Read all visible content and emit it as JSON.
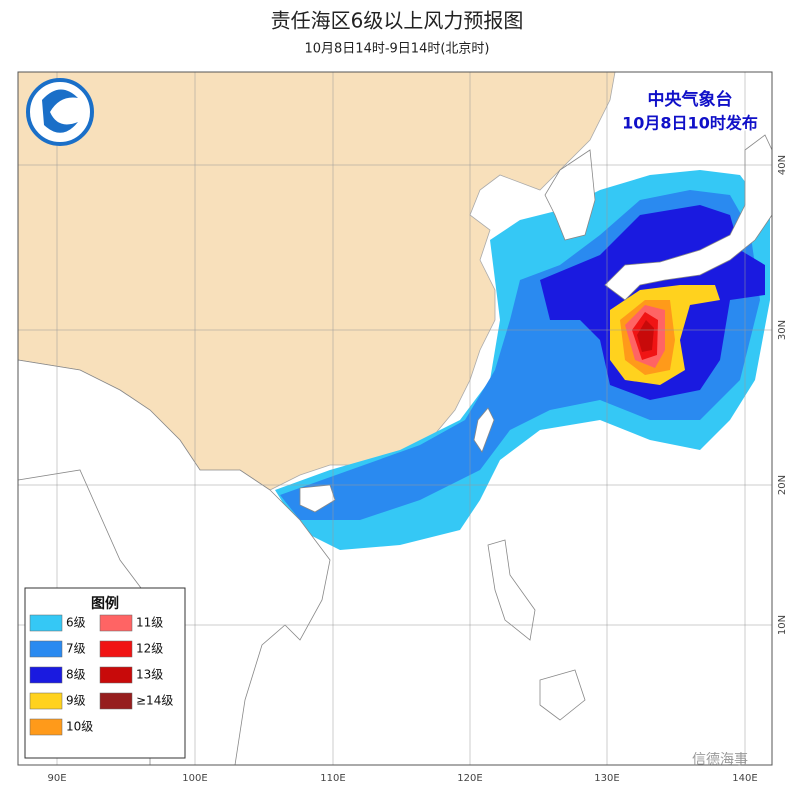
{
  "header": {
    "title": "责任海区6级以上风力预报图",
    "subtitle": "10月8日14时-9日14时(北京时)"
  },
  "issuer": {
    "agency": "中央气象台",
    "issued": "10月8日10时发布"
  },
  "legend": {
    "title": "图例",
    "items": [
      {
        "label": "6级",
        "color": "#35c8f5"
      },
      {
        "label": "7级",
        "color": "#2a8af0"
      },
      {
        "label": "8级",
        "color": "#1a1ae0"
      },
      {
        "label": "9级",
        "color": "#ffd21e"
      },
      {
        "label": "10级",
        "color": "#ff9a1a"
      },
      {
        "label": "11级",
        "color": "#ff6464"
      },
      {
        "label": "12级",
        "color": "#f01414"
      },
      {
        "label": "13级",
        "color": "#c80a0a"
      },
      {
        "label": "≥14级",
        "color": "#961e1e"
      }
    ]
  },
  "axes": {
    "lon_labels": [
      "90E",
      "100E",
      "110E",
      "120E",
      "130E",
      "140E"
    ],
    "lat_labels": [
      "40N",
      "30N",
      "20N",
      "10N"
    ]
  },
  "watermark": "信德海事"
}
